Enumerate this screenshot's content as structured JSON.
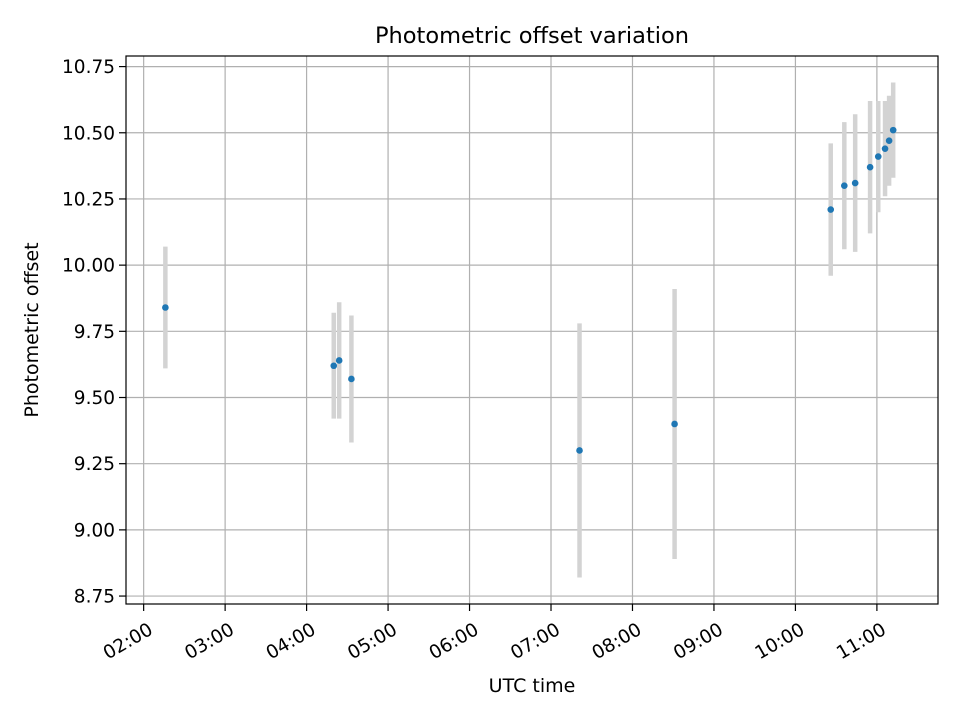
{
  "chart_data": {
    "type": "scatter",
    "title": "Photometric offset variation",
    "xlabel": "UTC time",
    "ylabel": "Photometric offset",
    "xlim": [
      "01:47",
      "11:45"
    ],
    "ylim": [
      8.72,
      10.79
    ],
    "grid": true,
    "x_ticks": [
      "02:00",
      "03:00",
      "04:00",
      "05:00",
      "06:00",
      "07:00",
      "08:00",
      "09:00",
      "10:00",
      "11:00"
    ],
    "y_ticks": [
      "8.75",
      "9.00",
      "9.25",
      "9.50",
      "9.75",
      "10.00",
      "10.25",
      "10.50",
      "10.75"
    ],
    "series": [
      {
        "marker_color": "#1f77b4",
        "errorbar_color": "#d3d3d3",
        "points": [
          {
            "x": "02:16",
            "y": 9.84,
            "yerr": 0.23
          },
          {
            "x": "04:20",
            "y": 9.62,
            "yerr": 0.2
          },
          {
            "x": "04:24",
            "y": 9.64,
            "yerr": 0.22
          },
          {
            "x": "04:33",
            "y": 9.57,
            "yerr": 0.24
          },
          {
            "x": "07:21",
            "y": 9.3,
            "yerr": 0.48
          },
          {
            "x": "08:31",
            "y": 9.4,
            "yerr": 0.51
          },
          {
            "x": "10:26",
            "y": 10.21,
            "yerr": 0.25
          },
          {
            "x": "10:36",
            "y": 10.3,
            "yerr": 0.24
          },
          {
            "x": "10:44",
            "y": 10.31,
            "yerr": 0.26
          },
          {
            "x": "10:55",
            "y": 10.37,
            "yerr": 0.25
          },
          {
            "x": "11:01",
            "y": 10.41,
            "yerr": 0.21
          },
          {
            "x": "11:06",
            "y": 10.44,
            "yerr": 0.18
          },
          {
            "x": "11:09",
            "y": 10.47,
            "yerr": 0.17
          },
          {
            "x": "11:12",
            "y": 10.51,
            "yerr": 0.18
          }
        ]
      }
    ]
  }
}
